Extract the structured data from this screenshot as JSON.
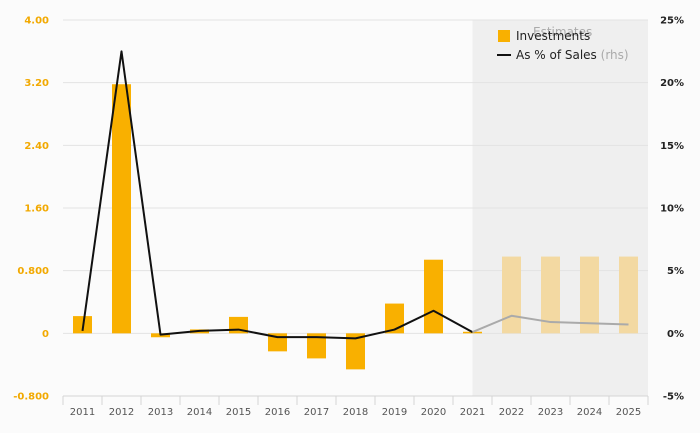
{
  "chart_data": {
    "type": "bar",
    "categories": [
      "2011",
      "2012",
      "2013",
      "2014",
      "2015",
      "2016",
      "2017",
      "2018",
      "2019",
      "2020",
      "2021",
      "2022",
      "2023",
      "2024",
      "2025"
    ],
    "series": [
      {
        "name": "Investments",
        "axis": "left",
        "kind": "bar",
        "color": "#f9b000",
        "estimate_color": "#f3d9a2",
        "values": [
          0.22,
          3.18,
          -0.05,
          0.05,
          0.21,
          -0.23,
          -0.32,
          -0.46,
          0.38,
          0.94,
          0.02,
          0.98,
          0.98,
          0.98,
          0.98
        ]
      },
      {
        "name": "As % of Sales",
        "rhs_suffix": "(rhs)",
        "axis": "right",
        "kind": "line",
        "color": "#111111",
        "estimate_color": "#aaaaaa",
        "values": [
          0.2,
          22.5,
          -0.1,
          0.2,
          0.3,
          -0.3,
          -0.3,
          -0.4,
          0.3,
          1.8,
          0.1,
          1.4,
          0.9,
          0.8,
          0.7
        ]
      }
    ],
    "estimate_start_index": 11,
    "estimate_label": "Estimates",
    "y_left": {
      "ylim": [
        -0.8,
        4.0
      ],
      "ticks": [
        "-0.800",
        "0",
        "0.800",
        "1.60",
        "2.40",
        "3.20",
        "4.00"
      ],
      "tick_values": [
        -0.8,
        0,
        0.8,
        1.6,
        2.4,
        3.2,
        4.0
      ]
    },
    "y_right": {
      "ylim": [
        -5,
        25
      ],
      "ticks": [
        "-5%",
        "0%",
        "5%",
        "10%",
        "15%",
        "20%",
        "25%"
      ],
      "tick_values": [
        -5,
        0,
        5,
        10,
        15,
        20,
        25
      ]
    },
    "title": "",
    "xlabel": "",
    "ylabel": "",
    "grid": true,
    "legend_position": "top-right"
  }
}
